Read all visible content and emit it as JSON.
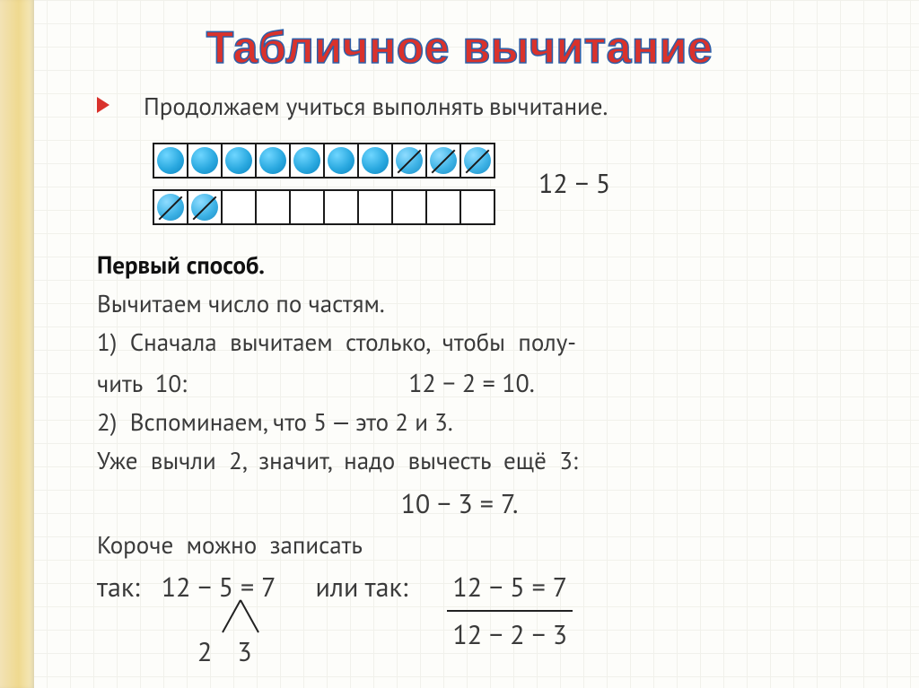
{
  "title": "Табличное вычитание",
  "intro": "Продолжаем учиться выполнять вычитание.",
  "visual": {
    "row1": [
      "full",
      "full",
      "full",
      "full",
      "full",
      "full",
      "full",
      "crossed",
      "crossed",
      "crossed"
    ],
    "row2": [
      "crossed",
      "crossed",
      "empty",
      "empty",
      "empty",
      "empty",
      "empty",
      "empty",
      "empty",
      "empty"
    ],
    "cell_border_color": "#1a1a1a",
    "dot_full_color": "#2aa9e0",
    "dot_crossed_color": "#3eb3e6",
    "side_expression": "12 − 5"
  },
  "method_heading": "Первый способ.",
  "line_intro2": "Вычитаем число по частям.",
  "step1_a": "1)  Сначала  вычитаем  столько,  чтобы  полу-",
  "step1_b": "чить  10:",
  "step1_expr": "12 − 2 = 10.",
  "step2_a": "2)  Вспоминаем, что 5 — это 2 и 3.",
  "step2_b": "Уже  вычли  2,  значит,  надо  вычесть  ещё  3:",
  "step2_expr": "10 − 3 = 7.",
  "short_a": "Короче  можно  записать",
  "decomp": {
    "prefix": "так:",
    "expr": "12 − 5 = 7",
    "branch_left": "2",
    "branch_right": "3",
    "or_text": "или так:",
    "stack_top": "12 − 5 = 7",
    "stack_bottom": "12 − 2 − 3"
  },
  "colors": {
    "title_fill": "#d9322c",
    "title_stroke": "#2e5fa8",
    "bullet": "#d9322c",
    "text": "#3a3a3a",
    "grid": "#e8e8e0",
    "sidebar_grad": [
      "#f2e2b5",
      "#efd98f",
      "#f6ebc2"
    ]
  }
}
